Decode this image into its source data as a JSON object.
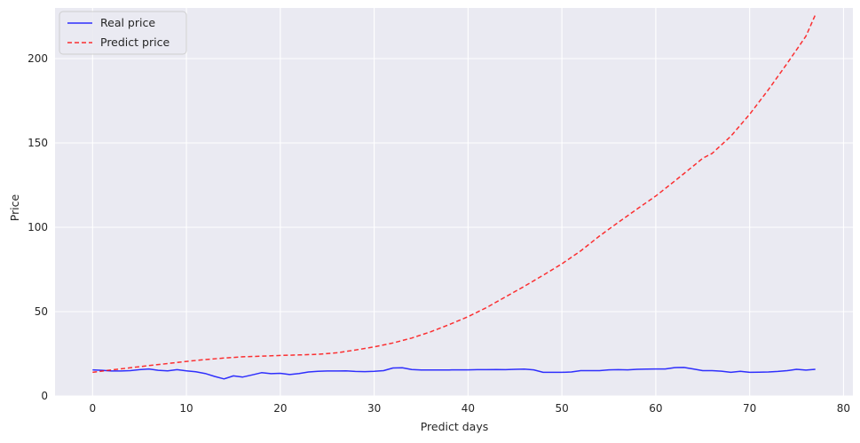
{
  "chart_data": {
    "type": "line",
    "title": "",
    "xlabel": "Predict days",
    "ylabel": "Price",
    "xlim": [
      -4,
      81
    ],
    "ylim": [
      0,
      230
    ],
    "xticks": [
      0,
      10,
      20,
      30,
      40,
      50,
      60,
      70,
      80
    ],
    "yticks": [
      0,
      50,
      100,
      150,
      200
    ],
    "grid": true,
    "legend_position": "top-left",
    "background_color": "#eaeaf2",
    "series": [
      {
        "name": "Real price",
        "color": "#0000ff",
        "linestyle": "solid",
        "x": [
          0,
          1,
          2,
          3,
          4,
          5,
          6,
          7,
          8,
          9,
          10,
          11,
          12,
          13,
          14,
          15,
          16,
          17,
          18,
          19,
          20,
          21,
          22,
          23,
          24,
          25,
          26,
          27,
          28,
          29,
          30,
          31,
          32,
          33,
          34,
          35,
          36,
          37,
          38,
          39,
          40,
          41,
          42,
          43,
          44,
          45,
          46,
          47,
          48,
          49,
          50,
          51,
          52,
          53,
          54,
          55,
          56,
          57,
          58,
          59,
          60,
          61,
          62,
          63,
          64,
          65,
          66,
          67,
          68,
          69,
          70,
          71,
          72,
          73,
          74,
          75,
          76,
          77
        ],
        "y": [
          15.5,
          15.2,
          14.8,
          14.8,
          15.0,
          15.6,
          16.0,
          15.2,
          14.9,
          15.6,
          14.9,
          14.3,
          13.3,
          11.6,
          10.1,
          11.9,
          11.2,
          12.5,
          13.8,
          13.2,
          13.4,
          12.7,
          13.3,
          14.2,
          14.6,
          14.8,
          14.8,
          14.9,
          14.5,
          14.4,
          14.6,
          15.0,
          16.6,
          16.7,
          15.7,
          15.4,
          15.4,
          15.4,
          15.4,
          15.5,
          15.5,
          15.6,
          15.6,
          15.7,
          15.6,
          15.8,
          15.9,
          15.5,
          14.0,
          14.0,
          14.0,
          14.2,
          15.0,
          15.0,
          15.0,
          15.5,
          15.6,
          15.5,
          15.8,
          15.9,
          16.0,
          16.0,
          16.8,
          16.9,
          16.0,
          15.0,
          15.0,
          14.7,
          14.0,
          14.6,
          14.0,
          14.1,
          14.2,
          14.5,
          15.0,
          15.8,
          15.3,
          15.8
        ]
      },
      {
        "name": "Predict price",
        "color": "#ff0000",
        "linestyle": "dashed",
        "x": [
          0,
          2,
          4,
          6,
          8,
          10,
          12,
          14,
          16,
          18,
          20,
          22,
          24,
          26,
          28,
          30,
          32,
          34,
          36,
          38,
          40,
          42,
          44,
          46,
          48,
          50,
          52,
          54,
          56,
          58,
          60,
          62,
          64,
          65,
          66,
          68,
          70,
          72,
          74,
          76,
          77
        ],
        "y": [
          14,
          15.4,
          16.7,
          18,
          19.2,
          20.5,
          21.6,
          22.5,
          23.2,
          23.6,
          24,
          24.3,
          24.7,
          25.6,
          27.2,
          29.1,
          31.4,
          34.3,
          38,
          42.3,
          47,
          52.5,
          58.8,
          65,
          71.6,
          78.3,
          86,
          94.8,
          102.9,
          110.8,
          118.5,
          127.3,
          136.3,
          140.9,
          143.8,
          154,
          167,
          181.6,
          197.2,
          213.3,
          226
        ]
      }
    ]
  }
}
